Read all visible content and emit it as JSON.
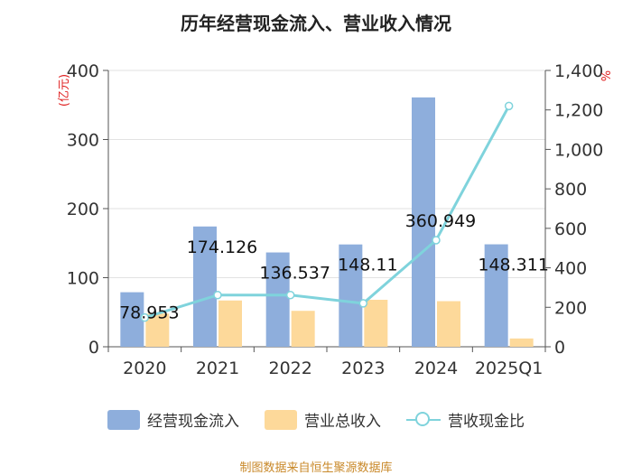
{
  "chart_data": {
    "type": "bar",
    "title": "历年经营现金流入、营业收入情况",
    "categories": [
      "2020",
      "2021",
      "2022",
      "2023",
      "2024",
      "2025Q1"
    ],
    "series": [
      {
        "name": "经营现金流入",
        "axis": "left",
        "type": "bar",
        "color": "#8eaedc",
        "values": [
          78.953,
          174.126,
          136.537,
          148.11,
          360.949,
          148.311
        ]
      },
      {
        "name": "营业总收入",
        "axis": "left",
        "type": "bar",
        "color": "#fdd99a",
        "values": [
          48,
          67,
          52,
          68,
          66,
          12
        ]
      },
      {
        "name": "营收现金比",
        "axis": "right",
        "type": "line",
        "color": "#7fd3dc",
        "values": [
          148,
          262,
          262,
          220,
          540,
          1220
        ]
      }
    ],
    "data_labels": [
      "78.953",
      "174.126",
      "136.537",
      "148.11",
      "360.949",
      "148.311"
    ],
    "ylabel_left": "(亿元)",
    "ylabel_right": "%",
    "ylim_left": [
      0,
      400
    ],
    "yticks_left": [
      "0",
      "100",
      "200",
      "300",
      "400"
    ],
    "ylim_right": [
      0,
      1400
    ],
    "yticks_right": [
      "0",
      "200",
      "400",
      "600",
      "800",
      "1,000",
      "1,200",
      "1,400"
    ],
    "grid": true,
    "legend_position": "bottom"
  },
  "source": "制图数据来自恒生聚源数据库"
}
